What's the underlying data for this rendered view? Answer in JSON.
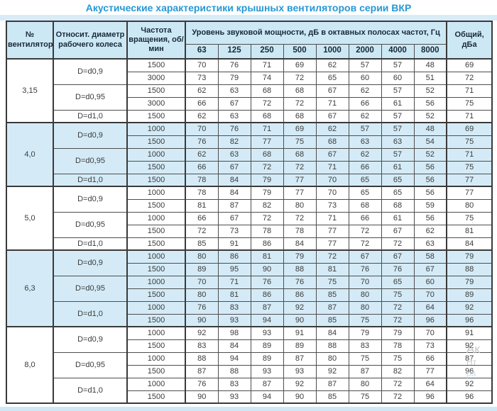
{
  "title": "Акустические характеристики крышных вентиляторов серии ВКР",
  "colors": {
    "title_accent": "#2798d4",
    "header_bg": "#cde8f5",
    "shaded_row_bg": "#d4ebf7",
    "border": "#3a3a3a",
    "decor_band": "#d8ecf7"
  },
  "watermark": {
    "lines": [
      "Ак",
      "Нт",
      "ра"
    ]
  },
  "table": {
    "headers": {
      "fan_number": "№ вентилятора",
      "rel_diameter": "Относит. диаметр рабочего колеса",
      "rotation_freq": "Частота вращения, об/мин",
      "sound_power": "Уровень звуковой мощности, дБ в октавных полосах частот, Гц",
      "frequencies": [
        "63",
        "125",
        "250",
        "500",
        "1000",
        "2000",
        "4000",
        "8000"
      ],
      "total": "Общий, дБа"
    },
    "groups": [
      {
        "fan": "3,15",
        "shaded": false,
        "subgroups": [
          {
            "diameter": "D=d0,9",
            "rows": [
              {
                "rpm": "1500",
                "levels": [
                  70,
                  76,
                  71,
                  69,
                  62,
                  57,
                  57,
                  48
                ],
                "total": 69
              },
              {
                "rpm": "3000",
                "levels": [
                  73,
                  79,
                  74,
                  72,
                  65,
                  60,
                  60,
                  51
                ],
                "total": 72
              }
            ]
          },
          {
            "diameter": "D=d0,95",
            "rows": [
              {
                "rpm": "1500",
                "levels": [
                  62,
                  63,
                  68,
                  68,
                  67,
                  62,
                  57,
                  52
                ],
                "total": 71
              },
              {
                "rpm": "3000",
                "levels": [
                  66,
                  67,
                  72,
                  72,
                  71,
                  66,
                  61,
                  56
                ],
                "total": 75
              }
            ]
          },
          {
            "diameter": "D=d1,0",
            "rows": [
              {
                "rpm": "1500",
                "levels": [
                  62,
                  63,
                  68,
                  68,
                  67,
                  62,
                  57,
                  52
                ],
                "total": 71
              }
            ]
          }
        ]
      },
      {
        "fan": "4,0",
        "shaded": true,
        "subgroups": [
          {
            "diameter": "D=d0,9",
            "rows": [
              {
                "rpm": "1000",
                "levels": [
                  70,
                  76,
                  71,
                  69,
                  62,
                  57,
                  57,
                  48
                ],
                "total": 69
              },
              {
                "rpm": "1500",
                "levels": [
                  76,
                  82,
                  77,
                  75,
                  68,
                  63,
                  63,
                  54
                ],
                "total": 75
              }
            ]
          },
          {
            "diameter": "D=d0,95",
            "rows": [
              {
                "rpm": "1000",
                "levels": [
                  62,
                  63,
                  68,
                  68,
                  67,
                  62,
                  57,
                  52
                ],
                "total": 71
              },
              {
                "rpm": "1500",
                "levels": [
                  66,
                  67,
                  72,
                  72,
                  71,
                  66,
                  61,
                  56
                ],
                "total": 75
              }
            ]
          },
          {
            "diameter": "D=d1,0",
            "rows": [
              {
                "rpm": "1500",
                "levels": [
                  78,
                  84,
                  79,
                  77,
                  70,
                  65,
                  65,
                  56
                ],
                "total": 77
              }
            ]
          }
        ]
      },
      {
        "fan": "5,0",
        "shaded": false,
        "subgroups": [
          {
            "diameter": "D=d0,9",
            "rows": [
              {
                "rpm": "1000",
                "levels": [
                  78,
                  84,
                  79,
                  77,
                  70,
                  65,
                  65,
                  56
                ],
                "total": 77
              },
              {
                "rpm": "1500",
                "levels": [
                  81,
                  87,
                  82,
                  80,
                  73,
                  68,
                  68,
                  59
                ],
                "total": 80
              }
            ]
          },
          {
            "diameter": "D=d0,95",
            "rows": [
              {
                "rpm": "1000",
                "levels": [
                  66,
                  67,
                  72,
                  72,
                  71,
                  66,
                  61,
                  56
                ],
                "total": 75
              },
              {
                "rpm": "1500",
                "levels": [
                  72,
                  73,
                  78,
                  78,
                  77,
                  72,
                  67,
                  62
                ],
                "total": 81
              }
            ]
          },
          {
            "diameter": "D=d1,0",
            "rows": [
              {
                "rpm": "1500",
                "levels": [
                  85,
                  91,
                  86,
                  84,
                  77,
                  72,
                  72,
                  63
                ],
                "total": 84
              }
            ]
          }
        ]
      },
      {
        "fan": "6,3",
        "shaded": true,
        "subgroups": [
          {
            "diameter": "D=d0,9",
            "rows": [
              {
                "rpm": "1000",
                "levels": [
                  80,
                  86,
                  81,
                  79,
                  72,
                  67,
                  67,
                  58
                ],
                "total": 79
              },
              {
                "rpm": "1500",
                "levels": [
                  89,
                  95,
                  90,
                  88,
                  81,
                  76,
                  76,
                  67
                ],
                "total": 88
              }
            ]
          },
          {
            "diameter": "D=d0,95",
            "rows": [
              {
                "rpm": "1000",
                "levels": [
                  70,
                  71,
                  76,
                  76,
                  75,
                  70,
                  65,
                  60
                ],
                "total": 79
              },
              {
                "rpm": "1500",
                "levels": [
                  80,
                  81,
                  86,
                  86,
                  85,
                  80,
                  75,
                  70
                ],
                "total": 89
              }
            ]
          },
          {
            "diameter": "D=d1,0",
            "rows": [
              {
                "rpm": "1000",
                "levels": [
                  76,
                  83,
                  87,
                  92,
                  87,
                  80,
                  72,
                  64
                ],
                "total": 92
              },
              {
                "rpm": "1500",
                "levels": [
                  90,
                  93,
                  94,
                  90,
                  85,
                  75,
                  72,
                  96
                ],
                "total": 96
              }
            ]
          }
        ]
      },
      {
        "fan": "8,0",
        "shaded": false,
        "subgroups": [
          {
            "diameter": "D=d0,9",
            "rows": [
              {
                "rpm": "1000",
                "levels": [
                  92,
                  98,
                  93,
                  91,
                  84,
                  79,
                  79,
                  70
                ],
                "total": 91
              },
              {
                "rpm": "1500",
                "levels": [
                  83,
                  84,
                  89,
                  89,
                  88,
                  83,
                  78,
                  73
                ],
                "total": 92
              }
            ]
          },
          {
            "diameter": "D=d0,95",
            "rows": [
              {
                "rpm": "1000",
                "levels": [
                  88,
                  94,
                  89,
                  87,
                  80,
                  75,
                  75,
                  66
                ],
                "total": 87
              },
              {
                "rpm": "1500",
                "levels": [
                  87,
                  88,
                  93,
                  93,
                  92,
                  87,
                  82,
                  77
                ],
                "total": 96
              }
            ]
          },
          {
            "diameter": "D=d1,0",
            "rows": [
              {
                "rpm": "1000",
                "levels": [
                  76,
                  83,
                  87,
                  92,
                  87,
                  80,
                  72,
                  64
                ],
                "total": 92
              },
              {
                "rpm": "1500",
                "levels": [
                  90,
                  93,
                  94,
                  90,
                  85,
                  75,
                  72,
                  96
                ],
                "total": 96
              }
            ]
          }
        ]
      }
    ]
  }
}
